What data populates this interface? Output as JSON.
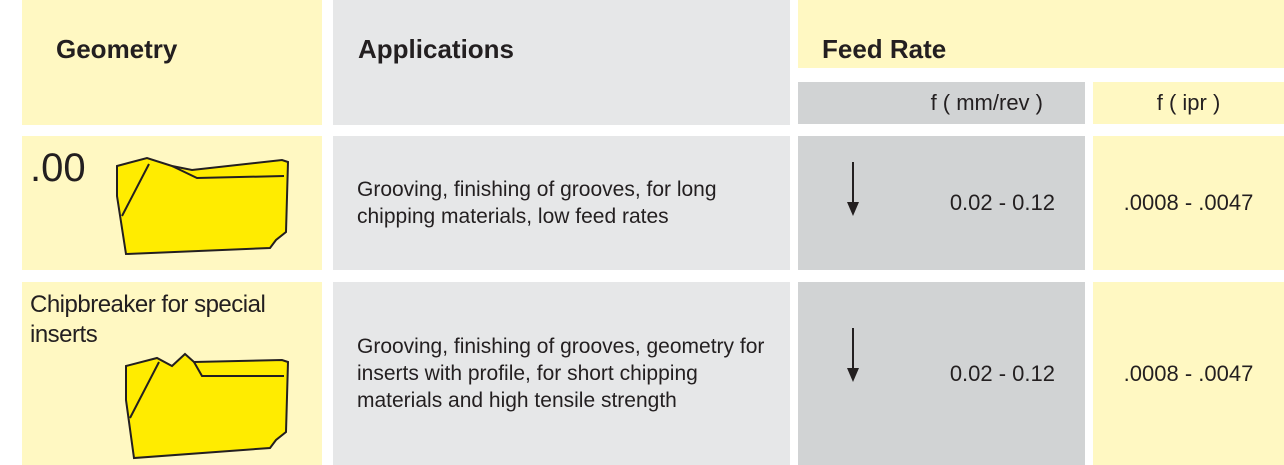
{
  "header": {
    "geometry": "Geometry",
    "applications": "Applications",
    "feed_rate": "Feed Rate",
    "feed_units": [
      "f ( mm/rev )",
      "f ( ipr )"
    ]
  },
  "rows": [
    {
      "geometry": ".00",
      "applications": "Grooving, finishing of grooves, for long chipping materials, low feed rates",
      "feed_mm": "0.02 - 0.12",
      "feed_ipr": ".0008 - .0047"
    },
    {
      "geometry": "Chipbreaker for special inserts",
      "applications": "Grooving, finishing of grooves, geometry for inserts with profile, for short chipping materials and high tensile strength",
      "feed_mm": "0.02 - 0.12",
      "feed_ipr": ".0008 - .0047"
    }
  ]
}
